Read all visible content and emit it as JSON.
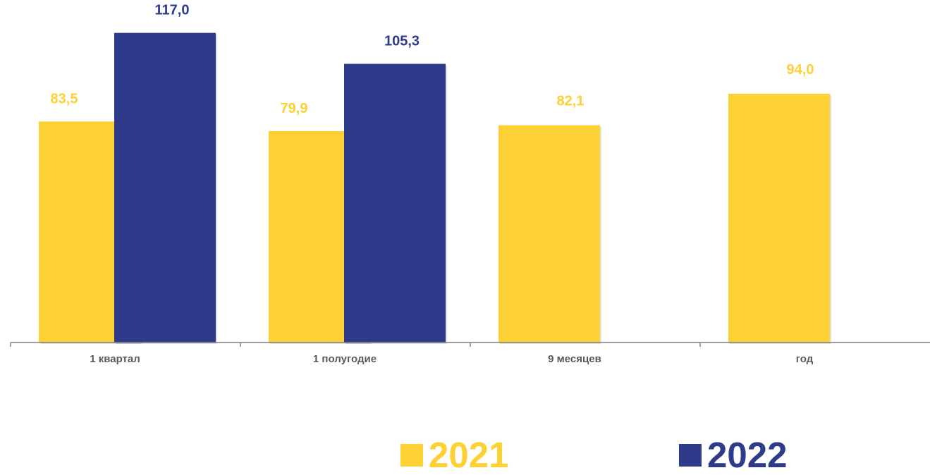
{
  "chart_data": {
    "type": "bar",
    "categories": [
      "1 квартал",
      "1 полугодие",
      "9 месяцев",
      "год"
    ],
    "series": [
      {
        "name": "2021",
        "color": "#FDD034",
        "values": [
          83.5,
          79.9,
          82.1,
          94.0
        ],
        "labels": [
          "83,5",
          "79,9",
          "82,1",
          "94,0"
        ]
      },
      {
        "name": "2022",
        "color": "#2E3A8A",
        "values": [
          117.0,
          105.3,
          null,
          null
        ],
        "labels": [
          "117,0",
          "105,3",
          "",
          ""
        ]
      }
    ],
    "ylim": [
      0,
      120
    ],
    "grid": false,
    "legend": "bottom"
  }
}
